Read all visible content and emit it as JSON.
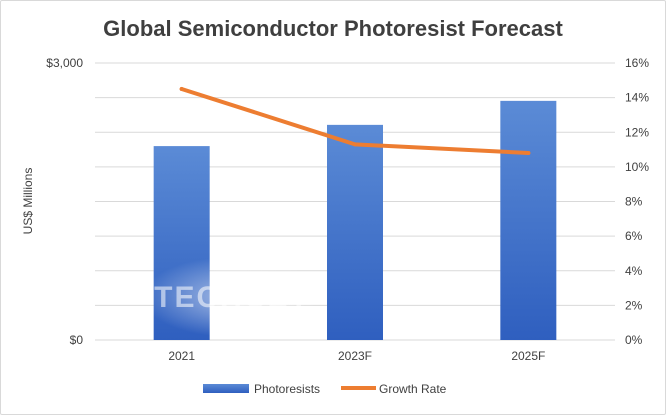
{
  "chart_data": {
    "type": "bar",
    "title": "Global Semiconductor Photoresist Forecast",
    "categories": [
      "2021",
      "2023F",
      "2025F"
    ],
    "series": [
      {
        "name": "Photoresists",
        "kind": "bar",
        "axis": "left",
        "values": [
          2100,
          2330,
          2590
        ]
      },
      {
        "name": "Growth Rate",
        "kind": "line",
        "axis": "right",
        "values": [
          14.5,
          11.3,
          10.8
        ]
      }
    ],
    "ylabel": "US$ Millions",
    "ylim": [
      0,
      3000
    ],
    "y_ticks": [
      0,
      1000,
      2000,
      3000
    ],
    "y_tick_labels": [
      "$0",
      "",
      "",
      "$3,000"
    ],
    "y2lim": [
      0,
      16
    ],
    "y2_ticks": [
      0,
      2,
      4,
      6,
      8,
      10,
      12,
      14,
      16
    ],
    "y2_tick_labels": [
      "0%",
      "2%",
      "4%",
      "6%",
      "8%",
      "10%",
      "12%",
      "14%",
      "16%"
    ],
    "grid": true,
    "legend_position": "bottom",
    "watermark": "TECHCET",
    "colors": {
      "bar": "#4472c4",
      "line": "#ed7d31",
      "grid": "#d9d9d9",
      "text": "#404040"
    }
  }
}
